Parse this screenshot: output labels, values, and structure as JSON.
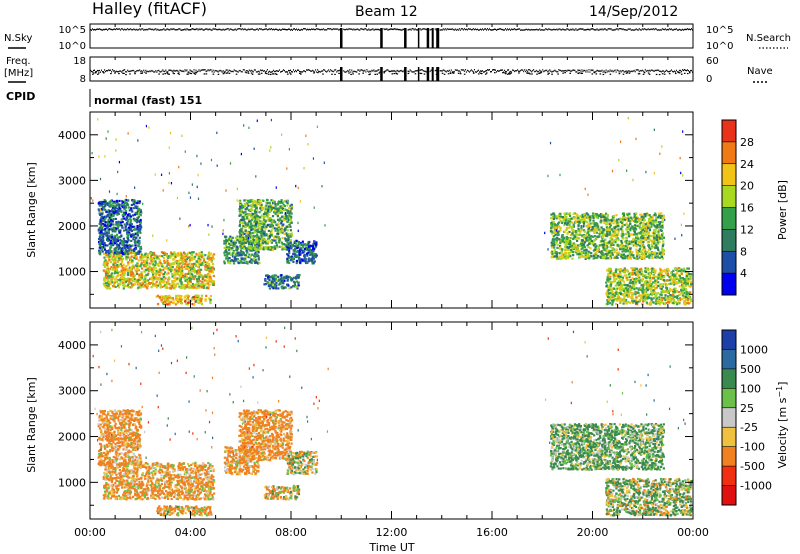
{
  "header": {
    "station": "Halley (fitACF)",
    "beam": "Beam 12",
    "date": "14/Sep/2012"
  },
  "status_panels": {
    "nsky": {
      "label": "N.Sky",
      "ticks": [
        "10^5",
        "10^0"
      ]
    },
    "nsearch": {
      "label": "N.Search",
      "ticks": [
        "10^5",
        "10^0"
      ]
    },
    "freq": {
      "label_line1": "Freq.",
      "label_line2": "[MHz]",
      "ticks": [
        "18",
        "8"
      ]
    },
    "nave": {
      "label": "Nave",
      "ticks": [
        "60",
        "0"
      ]
    },
    "cpid": {
      "label": "CPID",
      "value": "normal (fast) 151"
    },
    "gaps_ut_hours": [
      [
        9.95,
        10.05
      ],
      [
        11.55,
        11.65
      ],
      [
        12.5,
        12.6
      ],
      [
        13.05,
        13.1
      ],
      [
        13.4,
        13.5
      ],
      [
        13.6,
        13.68
      ],
      [
        13.78,
        13.9
      ]
    ]
  },
  "colors": {
    "power_scale": [
      "#0000ee",
      "#1e4fa8",
      "#2f7d5e",
      "#35a04a",
      "#a8d820",
      "#f2c418",
      "#f07a16",
      "#e8321a",
      "#e01010"
    ],
    "velocity_scale": [
      "#1f3fa8",
      "#2a6aa0",
      "#3a8a50",
      "#6bc04a",
      "#c8c8c8",
      "#f0c040",
      "#f08020",
      "#f03010",
      "#e01010"
    ]
  },
  "chart_data": [
    {
      "type": "heatmap",
      "name": "power",
      "xlabel": "",
      "ylabel": "Slant Range [km]",
      "xlim": [
        0,
        24
      ],
      "ylim": [
        200,
        4500
      ],
      "yticks": [
        "1000",
        "2000",
        "3000",
        "4000"
      ],
      "colorbar": {
        "label": "Power [dB]",
        "ticks": [
          "4",
          "8",
          "12",
          "16",
          "20",
          "24",
          "28"
        ],
        "range": [
          0,
          30
        ]
      },
      "echo_regions": [
        {
          "t": [
            0.5,
            4.9
          ],
          "r": [
            650,
            1450
          ],
          "level": 20
        },
        {
          "t": [
            0.3,
            2.0
          ],
          "r": [
            1400,
            2600
          ],
          "level": 8
        },
        {
          "t": [
            2.6,
            4.8
          ],
          "r": [
            300,
            500
          ],
          "level": 22
        },
        {
          "t": [
            5.3,
            6.7
          ],
          "r": [
            1200,
            1800
          ],
          "level": 12
        },
        {
          "t": [
            5.9,
            8.0
          ],
          "r": [
            1500,
            2600
          ],
          "level": 14
        },
        {
          "t": [
            6.9,
            8.3
          ],
          "r": [
            650,
            950
          ],
          "level": 10
        },
        {
          "t": [
            7.8,
            9.0
          ],
          "r": [
            1200,
            1700
          ],
          "level": 8
        },
        {
          "t": [
            18.3,
            22.8
          ],
          "r": [
            1300,
            2300
          ],
          "level": 16
        },
        {
          "t": [
            20.5,
            23.9
          ],
          "r": [
            300,
            1100
          ],
          "level": 18
        }
      ]
    },
    {
      "type": "heatmap",
      "name": "velocity",
      "xlabel": "Time UT",
      "ylabel": "Slant Range [km]",
      "xlim": [
        0,
        24
      ],
      "ylim": [
        200,
        4500
      ],
      "xticks": [
        "00:00",
        "04:00",
        "08:00",
        "12:00",
        "16:00",
        "20:00",
        "00:00"
      ],
      "yticks": [
        "1000",
        "2000",
        "3000",
        "4000"
      ],
      "colorbar": {
        "label": "Velocity [m s^-1]",
        "ticks": [
          "1000",
          "500",
          "100",
          "25",
          "-25",
          "-100",
          "-500",
          "-1000"
        ],
        "range": [
          -1200,
          1200
        ]
      },
      "echo_regions": [
        {
          "t": [
            0.5,
            4.9
          ],
          "r": [
            650,
            1450
          ],
          "level": -150
        },
        {
          "t": [
            0.3,
            2.0
          ],
          "r": [
            1400,
            2600
          ],
          "level": -200
        },
        {
          "t": [
            2.6,
            4.8
          ],
          "r": [
            300,
            500
          ],
          "level": -120
        },
        {
          "t": [
            5.3,
            6.7
          ],
          "r": [
            1200,
            1800
          ],
          "level": -180
        },
        {
          "t": [
            5.9,
            8.0
          ],
          "r": [
            1500,
            2600
          ],
          "level": -200
        },
        {
          "t": [
            6.9,
            8.3
          ],
          "r": [
            650,
            950
          ],
          "level": -60
        },
        {
          "t": [
            7.8,
            9.0
          ],
          "r": [
            1200,
            1700
          ],
          "level": 0
        },
        {
          "t": [
            18.3,
            22.8
          ],
          "r": [
            1300,
            2300
          ],
          "level": 150
        },
        {
          "t": [
            20.5,
            23.9
          ],
          "r": [
            300,
            1100
          ],
          "level": 80
        }
      ]
    }
  ]
}
